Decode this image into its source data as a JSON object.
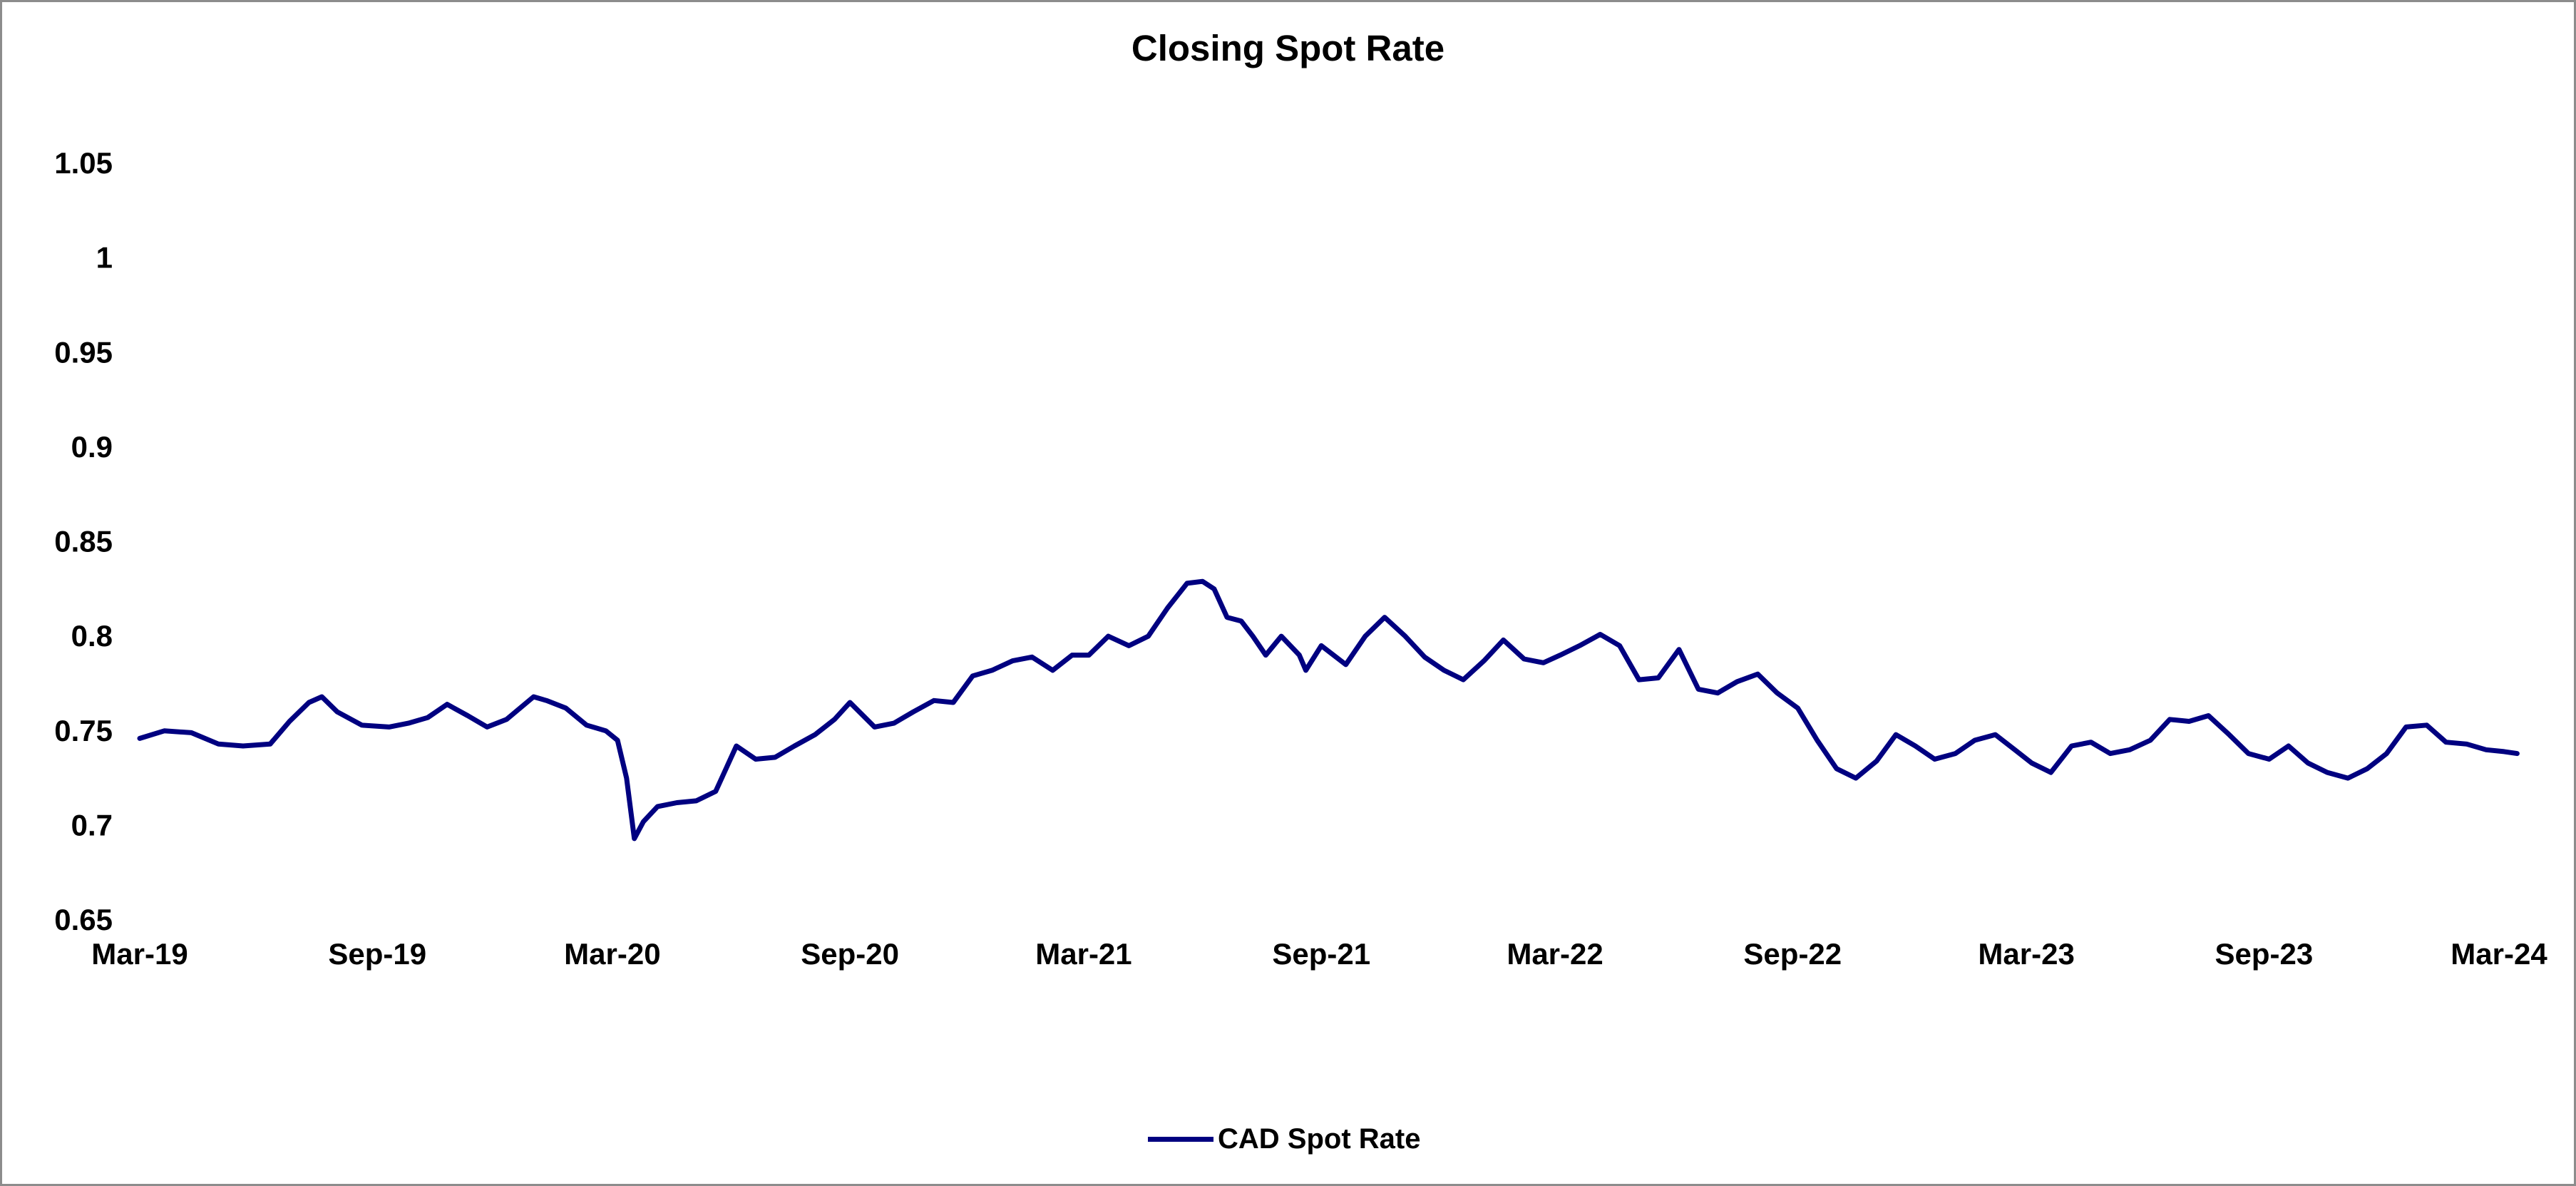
{
  "chart_data": {
    "type": "line",
    "title": "Closing Spot Rate",
    "xlabel": "",
    "ylabel": "",
    "ylim": [
      0.65,
      1.05
    ],
    "y_ticks": [
      "0.65",
      "0.7",
      "0.75",
      "0.8",
      "0.85",
      "0.9",
      "0.95",
      "1",
      "1.05"
    ],
    "x_range": [
      "2019-03",
      "2024-03"
    ],
    "x_ticks": [
      {
        "date": "2019-03",
        "label": "Mar-19"
      },
      {
        "date": "2019-09",
        "label": "Sep-19"
      },
      {
        "date": "2020-03",
        "label": "Mar-20"
      },
      {
        "date": "2020-09",
        "label": "Sep-20"
      },
      {
        "date": "2021-03",
        "label": "Mar-21"
      },
      {
        "date": "2021-09",
        "label": "Sep-21"
      },
      {
        "date": "2022-03",
        "label": "Mar-22"
      },
      {
        "date": "2022-09",
        "label": "Sep-22"
      },
      {
        "date": "2023-03",
        "label": "Mar-23"
      },
      {
        "date": "2023-09",
        "label": "Sep-23"
      },
      {
        "date": "2024-03",
        "label": "Mar-24"
      }
    ],
    "grid": false,
    "legend_position": "bottom",
    "series": [
      {
        "name": "CAD Spot Rate",
        "color": "#000080",
        "points": [
          [
            "2019-03-01",
            0.746
          ],
          [
            "2019-03-20",
            0.75
          ],
          [
            "2019-04-10",
            0.749
          ],
          [
            "2019-05-01",
            0.743
          ],
          [
            "2019-05-20",
            0.742
          ],
          [
            "2019-06-10",
            0.743
          ],
          [
            "2019-06-25",
            0.755
          ],
          [
            "2019-07-10",
            0.765
          ],
          [
            "2019-07-20",
            0.768
          ],
          [
            "2019-08-01",
            0.76
          ],
          [
            "2019-08-20",
            0.753
          ],
          [
            "2019-09-10",
            0.752
          ],
          [
            "2019-09-25",
            0.754
          ],
          [
            "2019-10-10",
            0.757
          ],
          [
            "2019-10-25",
            0.764
          ],
          [
            "2019-11-10",
            0.758
          ],
          [
            "2019-11-25",
            0.752
          ],
          [
            "2019-12-10",
            0.756
          ],
          [
            "2019-12-31",
            0.768
          ],
          [
            "2020-01-10",
            0.766
          ],
          [
            "2020-01-25",
            0.762
          ],
          [
            "2020-02-10",
            0.753
          ],
          [
            "2020-02-25",
            0.75
          ],
          [
            "2020-03-05",
            0.745
          ],
          [
            "2020-03-12",
            0.725
          ],
          [
            "2020-03-18",
            0.693
          ],
          [
            "2020-03-25",
            0.702
          ],
          [
            "2020-04-05",
            0.71
          ],
          [
            "2020-04-20",
            0.712
          ],
          [
            "2020-05-05",
            0.713
          ],
          [
            "2020-05-20",
            0.718
          ],
          [
            "2020-06-05",
            0.742
          ],
          [
            "2020-06-20",
            0.735
          ],
          [
            "2020-07-05",
            0.736
          ],
          [
            "2020-07-20",
            0.742
          ],
          [
            "2020-08-05",
            0.748
          ],
          [
            "2020-08-20",
            0.756
          ],
          [
            "2020-09-01",
            0.765
          ],
          [
            "2020-09-20",
            0.752
          ],
          [
            "2020-10-05",
            0.754
          ],
          [
            "2020-10-20",
            0.76
          ],
          [
            "2020-11-05",
            0.766
          ],
          [
            "2020-11-20",
            0.765
          ],
          [
            "2020-12-05",
            0.779
          ],
          [
            "2020-12-20",
            0.782
          ],
          [
            "2021-01-05",
            0.787
          ],
          [
            "2021-01-20",
            0.789
          ],
          [
            "2021-02-05",
            0.782
          ],
          [
            "2021-02-20",
            0.79
          ],
          [
            "2021-03-05",
            0.79
          ],
          [
            "2021-03-20",
            0.8
          ],
          [
            "2021-04-05",
            0.795
          ],
          [
            "2021-04-20",
            0.8
          ],
          [
            "2021-05-05",
            0.815
          ],
          [
            "2021-05-20",
            0.828
          ],
          [
            "2021-06-01",
            0.829
          ],
          [
            "2021-06-10",
            0.825
          ],
          [
            "2021-06-20",
            0.81
          ],
          [
            "2021-07-01",
            0.808
          ],
          [
            "2021-07-10",
            0.8
          ],
          [
            "2021-07-20",
            0.79
          ],
          [
            "2021-08-01",
            0.8
          ],
          [
            "2021-08-15",
            0.79
          ],
          [
            "2021-08-20",
            0.782
          ],
          [
            "2021-09-01",
            0.795
          ],
          [
            "2021-09-20",
            0.785
          ],
          [
            "2021-10-05",
            0.8
          ],
          [
            "2021-10-20",
            0.81
          ],
          [
            "2021-11-05",
            0.8
          ],
          [
            "2021-11-20",
            0.789
          ],
          [
            "2021-12-05",
            0.782
          ],
          [
            "2021-12-20",
            0.777
          ],
          [
            "2022-01-05",
            0.787
          ],
          [
            "2022-01-20",
            0.798
          ],
          [
            "2022-02-05",
            0.788
          ],
          [
            "2022-02-20",
            0.786
          ],
          [
            "2022-03-05",
            0.79
          ],
          [
            "2022-03-20",
            0.795
          ],
          [
            "2022-04-05",
            0.801
          ],
          [
            "2022-04-20",
            0.795
          ],
          [
            "2022-05-05",
            0.777
          ],
          [
            "2022-05-20",
            0.778
          ],
          [
            "2022-06-05",
            0.793
          ],
          [
            "2022-06-20",
            0.772
          ],
          [
            "2022-07-05",
            0.77
          ],
          [
            "2022-07-20",
            0.776
          ],
          [
            "2022-08-05",
            0.78
          ],
          [
            "2022-08-20",
            0.77
          ],
          [
            "2022-09-05",
            0.762
          ],
          [
            "2022-09-20",
            0.745
          ],
          [
            "2022-10-05",
            0.73
          ],
          [
            "2022-10-20",
            0.725
          ],
          [
            "2022-11-05",
            0.734
          ],
          [
            "2022-11-20",
            0.748
          ],
          [
            "2022-12-05",
            0.742
          ],
          [
            "2022-12-20",
            0.735
          ],
          [
            "2023-01-05",
            0.738
          ],
          [
            "2023-01-20",
            0.745
          ],
          [
            "2023-02-05",
            0.748
          ],
          [
            "2023-02-20",
            0.74
          ],
          [
            "2023-03-05",
            0.733
          ],
          [
            "2023-03-20",
            0.728
          ],
          [
            "2023-04-05",
            0.742
          ],
          [
            "2023-04-20",
            0.744
          ],
          [
            "2023-05-05",
            0.738
          ],
          [
            "2023-05-20",
            0.74
          ],
          [
            "2023-06-05",
            0.745
          ],
          [
            "2023-06-20",
            0.756
          ],
          [
            "2023-07-05",
            0.755
          ],
          [
            "2023-07-20",
            0.758
          ],
          [
            "2023-08-05",
            0.748
          ],
          [
            "2023-08-20",
            0.738
          ],
          [
            "2023-09-05",
            0.735
          ],
          [
            "2023-09-20",
            0.742
          ],
          [
            "2023-10-05",
            0.733
          ],
          [
            "2023-10-20",
            0.728
          ],
          [
            "2023-11-05",
            0.725
          ],
          [
            "2023-11-20",
            0.73
          ],
          [
            "2023-12-05",
            0.738
          ],
          [
            "2023-12-20",
            0.752
          ],
          [
            "2024-01-05",
            0.753
          ],
          [
            "2024-01-20",
            0.744
          ],
          [
            "2024-02-05",
            0.743
          ],
          [
            "2024-02-20",
            0.74
          ],
          [
            "2024-03-05",
            0.739
          ],
          [
            "2024-03-15",
            0.738
          ]
        ]
      }
    ]
  }
}
